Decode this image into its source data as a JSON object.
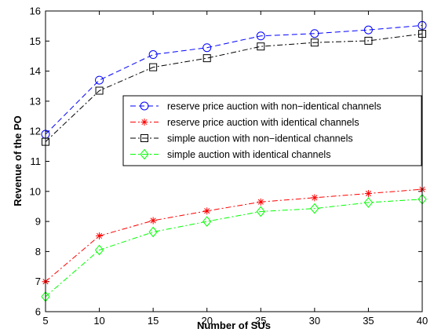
{
  "chart_data": {
    "type": "line",
    "title": "",
    "xlabel": "Number of SUs",
    "ylabel": "Revenue of the PO",
    "xlim": [
      5,
      40
    ],
    "ylim": [
      6,
      16
    ],
    "xticks": [
      5,
      10,
      15,
      20,
      25,
      30,
      35,
      40
    ],
    "yticks": [
      6,
      7,
      8,
      9,
      10,
      11,
      12,
      13,
      14,
      15,
      16
    ],
    "grid": false,
    "legend_position": "right",
    "x": [
      5,
      10,
      15,
      20,
      25,
      30,
      35,
      40
    ],
    "series": [
      {
        "name": "reserve price auction with non−identical channels",
        "values": [
          11.9,
          13.7,
          14.55,
          14.78,
          15.17,
          15.25,
          15.37,
          15.52
        ],
        "color": "#0000ff",
        "dash": "dashed",
        "marker": "circle"
      },
      {
        "name": "reserve price auction with identical channels",
        "values": [
          7.0,
          8.52,
          9.03,
          9.35,
          9.65,
          9.79,
          9.93,
          10.07
        ],
        "color": "#ff0000",
        "dash": "dashdot",
        "marker": "star"
      },
      {
        "name": "simple auction with non−identical channels",
        "values": [
          11.65,
          13.35,
          14.13,
          14.43,
          14.82,
          14.95,
          15.01,
          15.24
        ],
        "color": "#000000",
        "dash": "dashdot",
        "marker": "square"
      },
      {
        "name": "simple auction with identical channels",
        "values": [
          6.5,
          8.05,
          8.65,
          9.0,
          9.33,
          9.43,
          9.63,
          9.74
        ],
        "color": "#00ff00",
        "dash": "dashdot",
        "marker": "diamond"
      }
    ]
  }
}
